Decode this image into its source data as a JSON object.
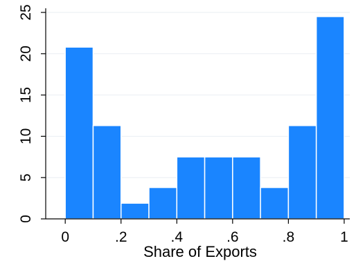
{
  "chart_data": {
    "type": "bar",
    "title": "",
    "xlabel": "Share of Exports",
    "ylabel": "",
    "bin_edges": [
      0,
      0.1,
      0.2,
      0.3,
      0.4,
      0.5,
      0.6,
      0.7,
      0.8,
      0.9,
      1.0
    ],
    "values": [
      20.8,
      11.3,
      1.9,
      3.8,
      7.5,
      7.5,
      7.5,
      3.8,
      11.3,
      24.5
    ],
    "xlim": [
      -0.07,
      1.02
    ],
    "ylim": [
      0,
      25.5
    ],
    "x_ticks": [
      {
        "value": 0,
        "label": "0"
      },
      {
        "value": 0.2,
        "label": ".2"
      },
      {
        "value": 0.4,
        "label": ".4"
      },
      {
        "value": 0.6,
        "label": ".6"
      },
      {
        "value": 0.8,
        "label": ".8"
      },
      {
        "value": 1.0,
        "label": "1"
      }
    ],
    "y_ticks": [
      {
        "value": 0,
        "label": "0"
      },
      {
        "value": 5,
        "label": "5"
      },
      {
        "value": 10,
        "label": "10"
      },
      {
        "value": 15,
        "label": "15"
      },
      {
        "value": 20,
        "label": "20"
      },
      {
        "value": 25,
        "label": "25"
      }
    ],
    "grid": true,
    "bar_color": "#1a85ff",
    "bar_edge_color": "#ffffff",
    "axis_color": "#000000",
    "grid_color": "#eaeef2"
  }
}
